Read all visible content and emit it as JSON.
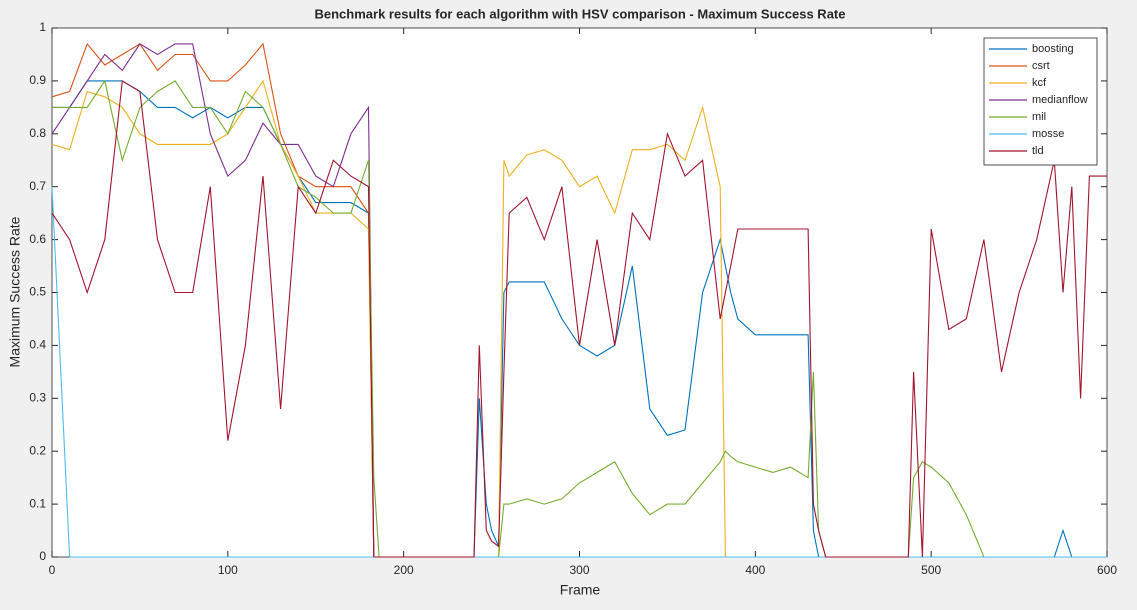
{
  "chart_data": {
    "type": "line",
    "title": "Benchmark results for each algorithm with HSV comparison - Maximum Success Rate",
    "x_label": "Frame",
    "y_label": "Maximum Success Rate",
    "xlim": [
      0,
      600
    ],
    "xticks": [
      0,
      100,
      200,
      300,
      400,
      500,
      600
    ],
    "ylim": [
      0,
      1
    ],
    "yticks": [
      0,
      0.1,
      0.2,
      0.3,
      0.4,
      0.5,
      0.6,
      0.7,
      0.8,
      0.9,
      1
    ],
    "grid": false,
    "legend": "northeast",
    "x": [
      0,
      10,
      20,
      30,
      40,
      50,
      60,
      70,
      80,
      90,
      100,
      110,
      120,
      130,
      140,
      150,
      160,
      170,
      180,
      183,
      186,
      190,
      200,
      210,
      220,
      230,
      240,
      243,
      247,
      250,
      254,
      257,
      260,
      270,
      280,
      290,
      300,
      310,
      320,
      330,
      340,
      350,
      360,
      370,
      380,
      383,
      386,
      390,
      400,
      410,
      420,
      430,
      433,
      436,
      440,
      450,
      460,
      470,
      480,
      487,
      490,
      495,
      500,
      510,
      520,
      530,
      540,
      550,
      560,
      570,
      575,
      580,
      585,
      590,
      600
    ],
    "series": [
      {
        "name": "boosting",
        "color": "#0072BD",
        "values": [
          0.85,
          0.85,
          0.9,
          0.9,
          0.9,
          0.88,
          0.85,
          0.85,
          0.83,
          0.85,
          0.83,
          0.85,
          0.85,
          0.78,
          0.72,
          0.67,
          0.67,
          0.67,
          0.65,
          0,
          0,
          0,
          0,
          0,
          0,
          0,
          0,
          0.3,
          0.1,
          0.05,
          0.02,
          0.5,
          0.52,
          0.52,
          0.52,
          0.45,
          0.4,
          0.38,
          0.4,
          0.55,
          0.28,
          0.23,
          0.24,
          0.5,
          0.6,
          0.55,
          0.5,
          0.45,
          0.42,
          0.42,
          0.42,
          0.42,
          0.05,
          0,
          0,
          0,
          0,
          0,
          0,
          0,
          0,
          0,
          0,
          0,
          0,
          0,
          0,
          0,
          0,
          0,
          0.05,
          0,
          0,
          0,
          0
        ]
      },
      {
        "name": "csrt",
        "color": "#D95319",
        "values": [
          0.87,
          0.88,
          0.97,
          0.93,
          0.95,
          0.97,
          0.92,
          0.95,
          0.95,
          0.9,
          0.9,
          0.93,
          0.97,
          0.8,
          0.72,
          0.7,
          0.7,
          0.7,
          0.65,
          0,
          0,
          0,
          0,
          0,
          0,
          0,
          0,
          0,
          0,
          0,
          0,
          0,
          0,
          0,
          0,
          0,
          0,
          0,
          0,
          0,
          0,
          0,
          0,
          0,
          0,
          0,
          0,
          0,
          0,
          0,
          0,
          0,
          0,
          0,
          0,
          0,
          0,
          0,
          0,
          0,
          0,
          0,
          0,
          0,
          0,
          0,
          0,
          0,
          0,
          0,
          0,
          0,
          0,
          0,
          0
        ]
      },
      {
        "name": "kcf",
        "color": "#EDB120",
        "values": [
          0.78,
          0.77,
          0.88,
          0.87,
          0.85,
          0.8,
          0.78,
          0.78,
          0.78,
          0.78,
          0.8,
          0.85,
          0.9,
          0.78,
          0.72,
          0.65,
          0.65,
          0.65,
          0.62,
          0,
          0,
          0,
          0,
          0,
          0,
          0,
          0,
          0,
          0,
          0,
          0,
          0.75,
          0.72,
          0.76,
          0.77,
          0.75,
          0.7,
          0.72,
          0.65,
          0.77,
          0.77,
          0.78,
          0.75,
          0.85,
          0.7,
          0,
          0,
          0,
          0,
          0,
          0,
          0,
          0,
          0,
          0,
          0,
          0,
          0,
          0,
          0,
          0,
          0,
          0,
          0,
          0,
          0,
          0,
          0,
          0,
          0,
          0,
          0,
          0,
          0,
          0
        ]
      },
      {
        "name": "medianflow",
        "color": "#7E2F8E",
        "values": [
          0.8,
          0.85,
          0.9,
          0.95,
          0.92,
          0.97,
          0.95,
          0.97,
          0.97,
          0.8,
          0.72,
          0.75,
          0.82,
          0.78,
          0.78,
          0.72,
          0.7,
          0.8,
          0.85,
          0,
          0,
          0,
          0,
          0,
          0,
          0,
          0,
          0,
          0,
          0,
          0,
          0,
          0,
          0,
          0,
          0,
          0,
          0,
          0,
          0,
          0,
          0,
          0,
          0,
          0,
          0,
          0,
          0,
          0,
          0,
          0,
          0,
          0,
          0,
          0,
          0,
          0,
          0,
          0,
          0,
          0,
          0,
          0,
          0,
          0,
          0,
          0,
          0,
          0,
          0,
          0,
          0,
          0,
          0,
          0
        ]
      },
      {
        "name": "mil",
        "color": "#77AC30",
        "values": [
          0.85,
          0.85,
          0.85,
          0.9,
          0.75,
          0.85,
          0.88,
          0.9,
          0.85,
          0.85,
          0.8,
          0.88,
          0.85,
          0.78,
          0.7,
          0.68,
          0.65,
          0.65,
          0.75,
          0.15,
          0,
          0,
          0,
          0,
          0,
          0,
          0,
          0,
          0,
          0,
          0,
          0.1,
          0.1,
          0.11,
          0.1,
          0.11,
          0.14,
          0.16,
          0.18,
          0.12,
          0.08,
          0.1,
          0.1,
          0.14,
          0.18,
          0.2,
          0.19,
          0.18,
          0.17,
          0.16,
          0.17,
          0.15,
          0.35,
          0.05,
          0,
          0,
          0,
          0,
          0,
          0,
          0.15,
          0.18,
          0.17,
          0.14,
          0.08,
          0,
          0,
          0,
          0,
          0,
          0,
          0,
          0,
          0,
          0
        ]
      },
      {
        "name": "mosse",
        "color": "#4DBEEE",
        "values": [
          0.7,
          0,
          0,
          0,
          0,
          0,
          0,
          0,
          0,
          0,
          0,
          0,
          0,
          0,
          0,
          0,
          0,
          0,
          0,
          0,
          0,
          0,
          0,
          0,
          0,
          0,
          0,
          0,
          0,
          0,
          0,
          0,
          0,
          0,
          0,
          0,
          0,
          0,
          0,
          0,
          0,
          0,
          0,
          0,
          0,
          0,
          0,
          0,
          0,
          0,
          0,
          0,
          0,
          0,
          0,
          0,
          0,
          0,
          0,
          0,
          0,
          0,
          0,
          0,
          0,
          0,
          0,
          0,
          0,
          0,
          0,
          0,
          0,
          0,
          0
        ]
      },
      {
        "name": "tld",
        "color": "#A2142F",
        "values": [
          0.65,
          0.6,
          0.5,
          0.6,
          0.9,
          0.88,
          0.6,
          0.5,
          0.5,
          0.7,
          0.22,
          0.4,
          0.72,
          0.28,
          0.7,
          0.65,
          0.75,
          0.72,
          0.7,
          0,
          0,
          0,
          0,
          0,
          0,
          0,
          0,
          0.4,
          0.05,
          0.03,
          0.02,
          0.35,
          0.65,
          0.68,
          0.6,
          0.7,
          0.4,
          0.6,
          0.4,
          0.65,
          0.6,
          0.8,
          0.72,
          0.75,
          0.45,
          0.5,
          0.55,
          0.62,
          0.62,
          0.62,
          0.62,
          0.62,
          0.1,
          0.05,
          0,
          0,
          0,
          0,
          0,
          0,
          0.35,
          0,
          0.62,
          0.43,
          0.45,
          0.6,
          0.35,
          0.5,
          0.6,
          0.75,
          0.5,
          0.7,
          0.3,
          0.72,
          0.72
        ]
      }
    ]
  }
}
